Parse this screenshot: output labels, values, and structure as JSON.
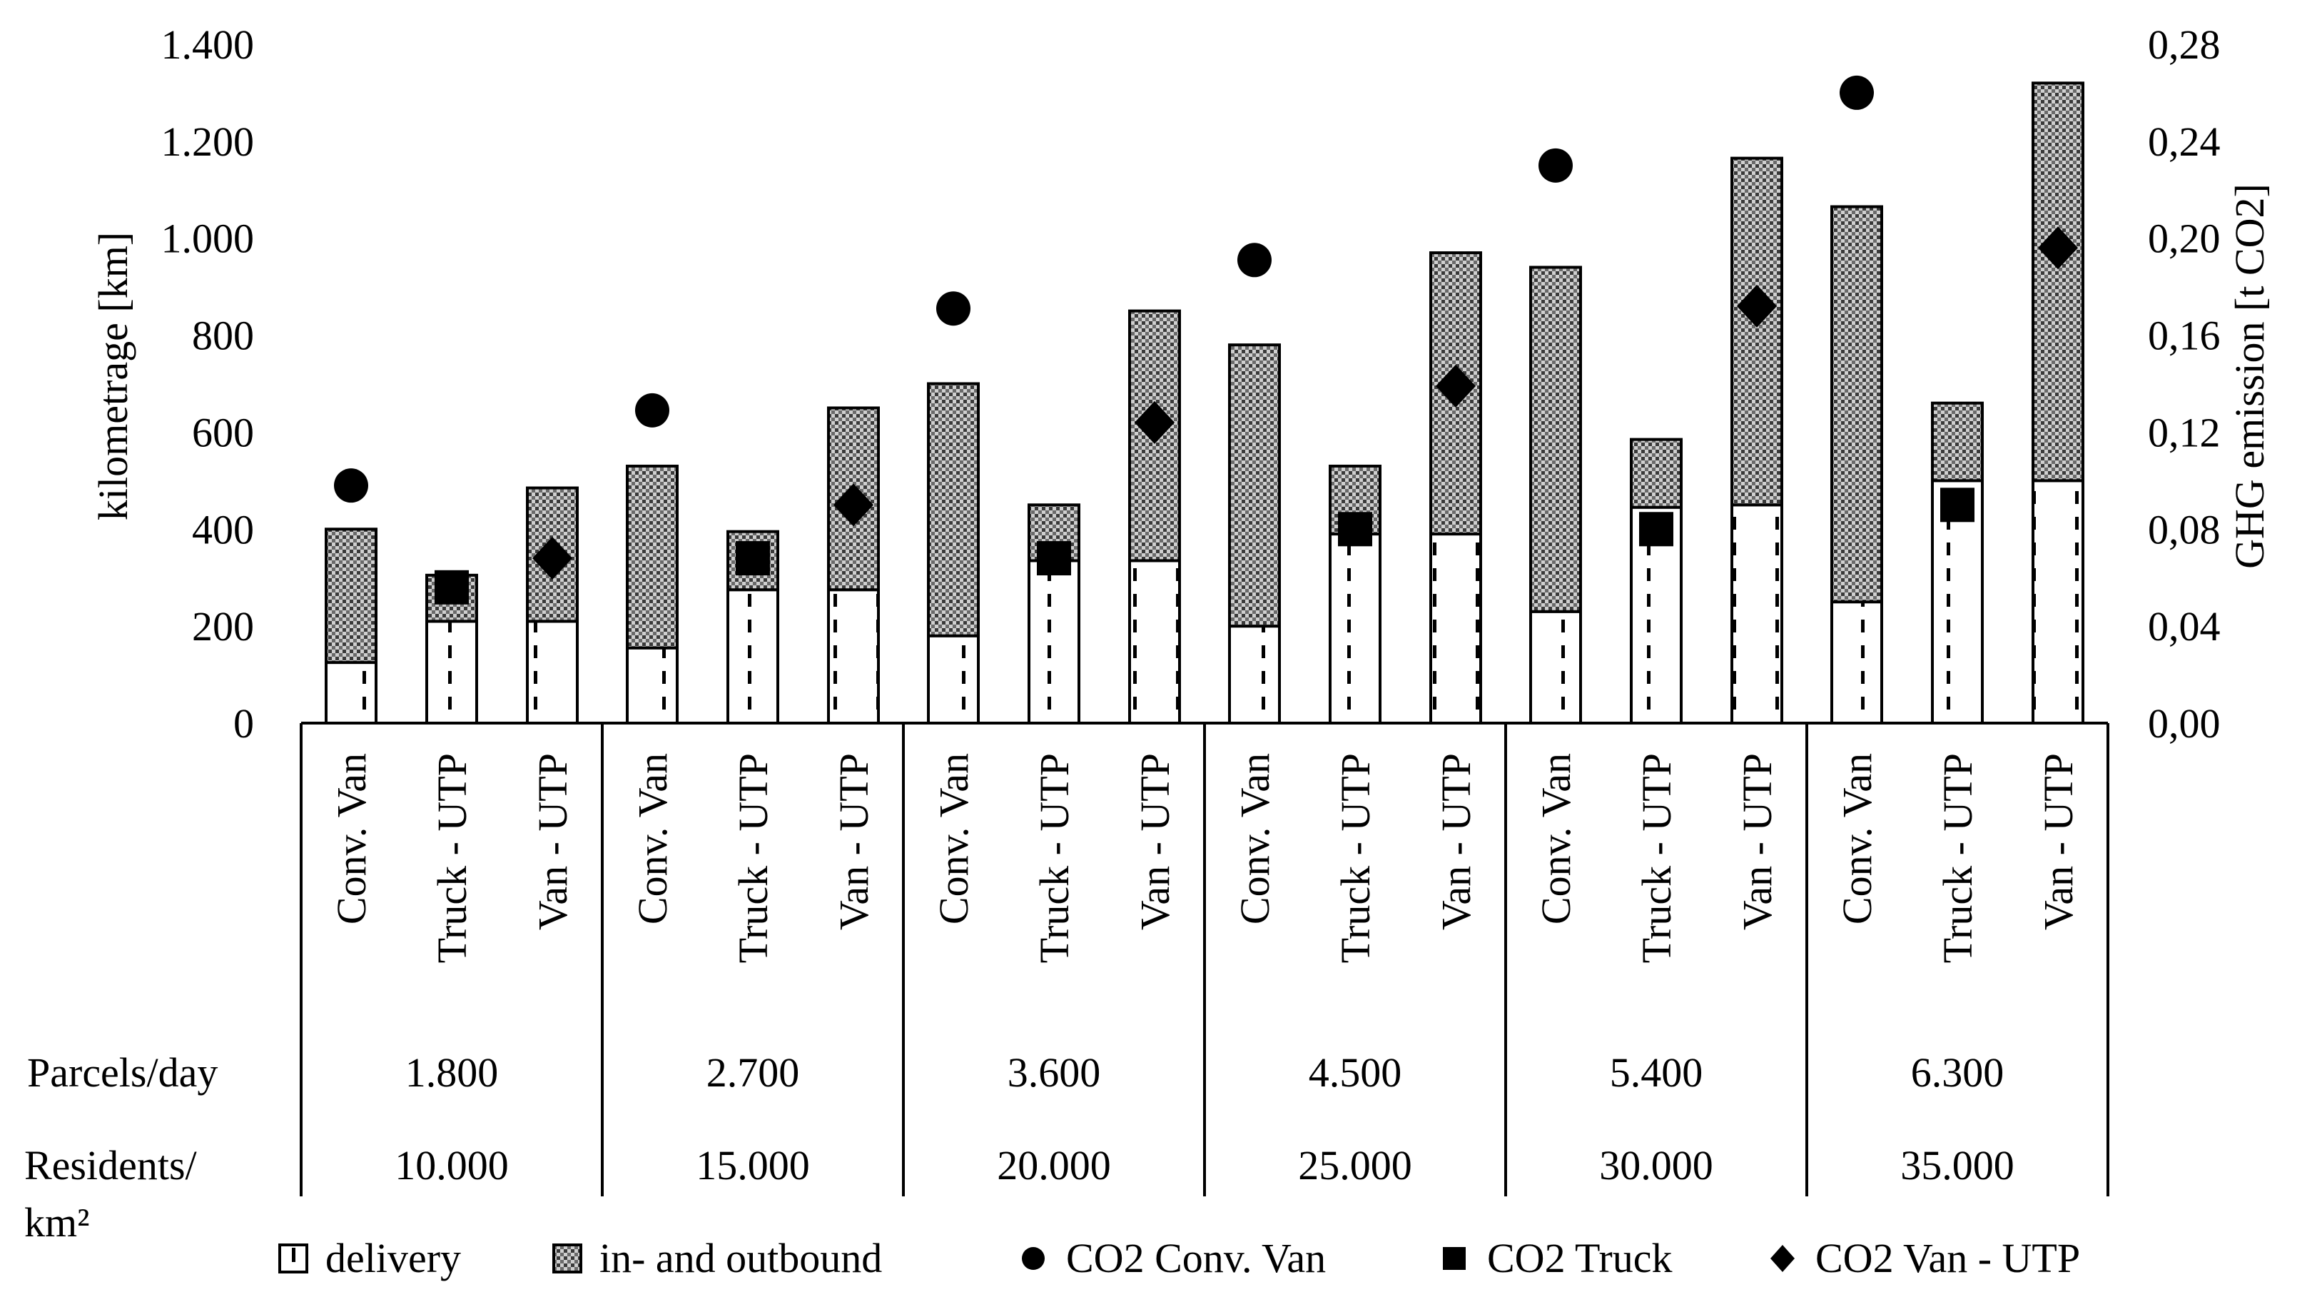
{
  "chart_data": {
    "type": "bar",
    "stacked": true,
    "y_left": {
      "label": "kilometrage  [km]",
      "ylim": [
        0,
        1400
      ],
      "ticks": [
        0,
        200,
        400,
        600,
        800,
        1000,
        1200,
        1400
      ],
      "tick_labels": [
        "0",
        "200",
        "400",
        "600",
        "800",
        "1.000",
        "1.200",
        "1.400"
      ]
    },
    "y_right": {
      "label": "GHG emission  [t CO2]",
      "ylim": [
        0,
        0.28
      ],
      "ticks": [
        0,
        0.04,
        0.08,
        0.12,
        0.16,
        0.2,
        0.24,
        0.28
      ],
      "tick_labels": [
        "0,00",
        "0,04",
        "0,08",
        "0,12",
        "0,16",
        "0,20",
        "0,24",
        "0,28"
      ]
    },
    "row_labels": {
      "parcels": "Parcels/day",
      "residents_line1": "Residents/",
      "residents_line2": "km²"
    },
    "groups": [
      {
        "parcels": "1.800",
        "residents": "10.000",
        "categories": [
          "Conv. Van",
          "Truck - UTP",
          "Van - UTP"
        ],
        "delivery": [
          125,
          210,
          210
        ],
        "inout": [
          275,
          95,
          275
        ],
        "co2": [
          0.098,
          0.056,
          0.068
        ]
      },
      {
        "parcels": "2.700",
        "residents": "15.000",
        "categories": [
          "Conv. Van",
          "Truck - UTP",
          "Van - UTP"
        ],
        "delivery": [
          155,
          275,
          275
        ],
        "inout": [
          375,
          120,
          375
        ],
        "co2": [
          0.129,
          0.068,
          0.09
        ]
      },
      {
        "parcels": "3.600",
        "residents": "20.000",
        "categories": [
          "Conv. Van",
          "Truck - UTP",
          "Van - UTP"
        ],
        "delivery": [
          180,
          335,
          335
        ],
        "inout": [
          520,
          115,
          515
        ],
        "co2": [
          0.171,
          0.068,
          0.124
        ]
      },
      {
        "parcels": "4.500",
        "residents": "25.000",
        "categories": [
          "Conv. Van",
          "Truck - UTP",
          "Van - UTP"
        ],
        "delivery": [
          200,
          390,
          390
        ],
        "inout": [
          580,
          140,
          580
        ],
        "co2": [
          0.191,
          0.08,
          0.139
        ]
      },
      {
        "parcels": "5.400",
        "residents": "30.000",
        "categories": [
          "Conv. Van",
          "Truck - UTP",
          "Van - UTP"
        ],
        "delivery": [
          230,
          445,
          450
        ],
        "inout": [
          710,
          140,
          715
        ],
        "co2": [
          0.23,
          0.08,
          0.172
        ]
      },
      {
        "parcels": "6.300",
        "residents": "35.000",
        "categories": [
          "Conv. Van",
          "Truck - UTP",
          "Van - UTP"
        ],
        "delivery": [
          250,
          500,
          500
        ],
        "inout": [
          815,
          160,
          820
        ],
        "co2": [
          0.26,
          0.09,
          0.196
        ]
      }
    ],
    "series": [
      {
        "name": "delivery",
        "marker": "bar-dashed"
      },
      {
        "name": "in- and outbound",
        "marker": "bar-crosshatch"
      },
      {
        "name": "CO2 Conv. Van",
        "marker": "circle"
      },
      {
        "name": "CO2 Truck",
        "marker": "square"
      },
      {
        "name": "CO2 Van - UTP",
        "marker": "diamond"
      }
    ],
    "legend": {
      "placement": "bottom",
      "items": [
        "delivery",
        "in- and outbound",
        "CO2 Conv. Van",
        "CO2 Truck",
        "CO2 Van - UTP"
      ]
    }
  }
}
